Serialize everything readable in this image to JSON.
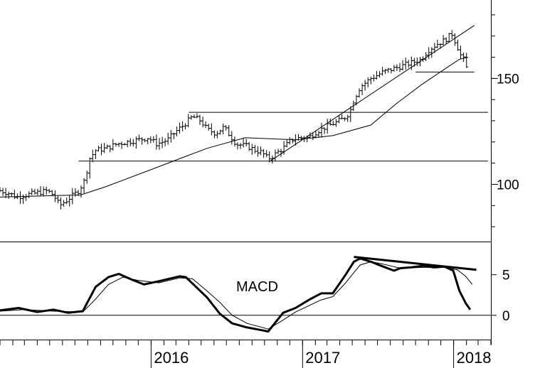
{
  "chart_data": [
    {
      "type": "ohlc",
      "ylim": [
        73,
        187
      ],
      "y_ticks": [
        {
          "value": 100,
          "label": "100"
        },
        {
          "value": 150,
          "label": "150"
        }
      ],
      "grid": false,
      "price_path": [
        [
          "2015-01-01",
          97
        ],
        [
          "2015-01-20",
          96
        ],
        [
          "2015-02-10",
          94
        ],
        [
          "2015-03-05",
          95
        ],
        [
          "2015-04-01",
          96
        ],
        [
          "2015-04-25",
          97
        ],
        [
          "2015-05-10",
          95
        ],
        [
          "2015-05-25",
          90
        ],
        [
          "2015-06-15",
          93
        ],
        [
          "2015-07-10",
          97
        ],
        [
          "2015-07-25",
          102
        ],
        [
          "2015-08-05",
          112
        ],
        [
          "2015-08-20",
          116
        ],
        [
          "2015-09-15",
          117
        ],
        [
          "2015-10-10",
          119
        ],
        [
          "2015-11-05",
          120
        ],
        [
          "2015-12-01",
          121
        ],
        [
          "2015-12-25",
          122
        ],
        [
          "2016-01-15",
          119
        ],
        [
          "2016-02-10",
          121
        ],
        [
          "2016-03-01",
          125
        ],
        [
          "2016-03-20",
          128
        ],
        [
          "2016-04-10",
          132
        ],
        [
          "2016-04-30",
          130
        ],
        [
          "2016-05-15",
          126
        ],
        [
          "2016-06-05",
          124
        ],
        [
          "2016-06-25",
          127
        ],
        [
          "2016-07-10",
          123
        ],
        [
          "2016-07-25",
          119
        ],
        [
          "2016-08-20",
          118
        ],
        [
          "2016-09-10",
          116
        ],
        [
          "2016-09-25",
          115
        ],
        [
          "2016-10-10",
          112
        ],
        [
          "2016-10-25",
          114
        ],
        [
          "2016-11-15",
          117
        ],
        [
          "2016-12-05",
          121
        ],
        [
          "2016-12-25",
          122
        ],
        [
          "2017-01-15",
          122
        ],
        [
          "2017-02-05",
          125
        ],
        [
          "2017-02-25",
          127
        ],
        [
          "2017-03-20",
          129
        ],
        [
          "2017-04-10",
          131
        ],
        [
          "2017-04-25",
          134
        ],
        [
          "2017-05-05",
          140
        ],
        [
          "2017-05-20",
          146
        ],
        [
          "2017-06-15",
          150
        ],
        [
          "2017-07-15",
          153
        ],
        [
          "2017-08-15",
          155
        ],
        [
          "2017-09-15",
          157
        ],
        [
          "2017-10-15",
          159
        ],
        [
          "2017-10-30",
          163
        ],
        [
          "2017-11-20",
          166
        ],
        [
          "2017-12-10",
          168
        ],
        [
          "2017-12-28",
          171
        ],
        [
          "2018-01-10",
          165
        ],
        [
          "2018-01-20",
          160
        ],
        [
          "2018-01-30",
          158
        ],
        [
          "2018-02-05",
          149
        ]
      ],
      "moving_average": [
        [
          "2015-01-01",
          94
        ],
        [
          "2015-07-15",
          95
        ],
        [
          "2015-09-15",
          99
        ],
        [
          "2016-01-15",
          108
        ],
        [
          "2016-05-15",
          117
        ],
        [
          "2016-08-15",
          122
        ],
        [
          "2016-12-15",
          121
        ],
        [
          "2017-03-15",
          123
        ],
        [
          "2017-06-15",
          128
        ],
        [
          "2017-08-15",
          138
        ],
        [
          "2017-10-15",
          147
        ],
        [
          "2017-12-15",
          155
        ],
        [
          "2018-01-15",
          159
        ],
        [
          "2018-02-05",
          160
        ]
      ],
      "trend_lines": [
        {
          "from": [
            "2016-10-15",
            111
          ],
          "to": [
            "2018-02-20",
            175
          ]
        },
        {
          "from": [
            "2017-10-01",
            153
          ],
          "to": [
            "2018-02-20",
            153
          ]
        },
        {
          "from": [
            "2016-04-01",
            134
          ],
          "to": [
            "2018-03-25",
            134
          ]
        },
        {
          "from": [
            "2015-07-10",
            111
          ],
          "to": [
            "2018-03-25",
            111
          ]
        }
      ]
    },
    {
      "type": "line",
      "label": "MACD",
      "ylim": [
        -3,
        9
      ],
      "y_ticks": [
        {
          "value": 0,
          "label": "0"
        },
        {
          "value": 5,
          "label": "5"
        }
      ],
      "zero_line": true,
      "series": [
        {
          "values": [
            [
              "2015-01-01",
              0.6
            ],
            [
              "2015-02-15",
              0.9
            ],
            [
              "2015-04-01",
              0.4
            ],
            [
              "2015-05-10",
              0.7
            ],
            [
              "2015-06-15",
              0.3
            ],
            [
              "2015-07-20",
              0.5
            ],
            [
              "2015-08-20",
              3.5
            ],
            [
              "2015-09-20",
              4.7
            ],
            [
              "2015-10-15",
              5.1
            ],
            [
              "2015-11-15",
              4.4
            ],
            [
              "2015-12-15",
              3.8
            ],
            [
              "2016-01-20",
              4.2
            ],
            [
              "2016-03-10",
              4.8
            ],
            [
              "2016-03-25",
              4.7
            ],
            [
              "2016-05-15",
              2.2
            ],
            [
              "2016-06-15",
              0.2
            ],
            [
              "2016-07-15",
              -1.0
            ],
            [
              "2016-08-20",
              -1.5
            ],
            [
              "2016-09-20",
              -1.8
            ],
            [
              "2016-10-10",
              -2.0
            ],
            [
              "2016-11-15",
              0.3
            ],
            [
              "2016-12-15",
              0.9
            ],
            [
              "2017-01-20",
              2.0
            ],
            [
              "2017-02-15",
              2.7
            ],
            [
              "2017-03-15",
              2.7
            ],
            [
              "2017-04-15",
              5.0
            ],
            [
              "2017-05-05",
              6.6
            ],
            [
              "2017-05-20",
              7.0
            ],
            [
              "2017-06-15",
              6.6
            ],
            [
              "2017-07-15",
              6.0
            ],
            [
              "2017-08-10",
              5.5
            ],
            [
              "2017-08-25",
              5.8
            ],
            [
              "2017-09-20",
              5.9
            ],
            [
              "2017-10-20",
              6.1
            ],
            [
              "2017-11-15",
              5.9
            ],
            [
              "2017-12-10",
              6.0
            ],
            [
              "2017-12-31",
              5.5
            ],
            [
              "2018-01-15",
              3.0
            ],
            [
              "2018-01-30",
              1.5
            ],
            [
              "2018-02-10",
              0.7
            ]
          ]
        },
        {
          "values": [
            [
              "2015-01-01",
              0.5
            ],
            [
              "2015-03-01",
              0.7
            ],
            [
              "2015-05-10",
              0.5
            ],
            [
              "2015-07-20",
              0.4
            ],
            [
              "2015-08-20",
              2.0
            ],
            [
              "2015-09-20",
              3.8
            ],
            [
              "2015-10-25",
              4.7
            ],
            [
              "2015-12-01",
              4.3
            ],
            [
              "2016-01-20",
              4.0
            ],
            [
              "2016-03-10",
              4.6
            ],
            [
              "2016-04-10",
              4.5
            ],
            [
              "2016-05-15",
              3.0
            ],
            [
              "2016-06-15",
              1.6
            ],
            [
              "2016-07-15",
              0.0
            ],
            [
              "2016-08-20",
              -1.0
            ],
            [
              "2016-10-10",
              -1.7
            ],
            [
              "2016-11-15",
              -0.6
            ],
            [
              "2016-12-15",
              0.4
            ],
            [
              "2017-02-15",
              1.9
            ],
            [
              "2017-03-15",
              2.3
            ],
            [
              "2017-04-15",
              4.0
            ],
            [
              "2017-05-20",
              6.2
            ],
            [
              "2017-06-15",
              6.6
            ],
            [
              "2017-07-15",
              6.3
            ],
            [
              "2017-08-25",
              5.8
            ],
            [
              "2017-10-20",
              5.9
            ],
            [
              "2017-12-10",
              5.9
            ],
            [
              "2018-01-10",
              5.6
            ],
            [
              "2018-01-30",
              4.8
            ],
            [
              "2018-02-15",
              3.8
            ]
          ]
        }
      ],
      "trend_lines": [
        {
          "from": [
            "2017-05-05",
            7.2
          ],
          "to": [
            "2018-02-25",
            5.6
          ]
        }
      ]
    }
  ],
  "x_axis": {
    "labels": [
      {
        "date": "2016-01-01",
        "label": "2016"
      },
      {
        "date": "2017-01-01",
        "label": "2017"
      },
      {
        "date": "2018-01-01",
        "label": "2018"
      }
    ],
    "range": [
      "2015-01-01",
      "2018-04-01"
    ]
  }
}
